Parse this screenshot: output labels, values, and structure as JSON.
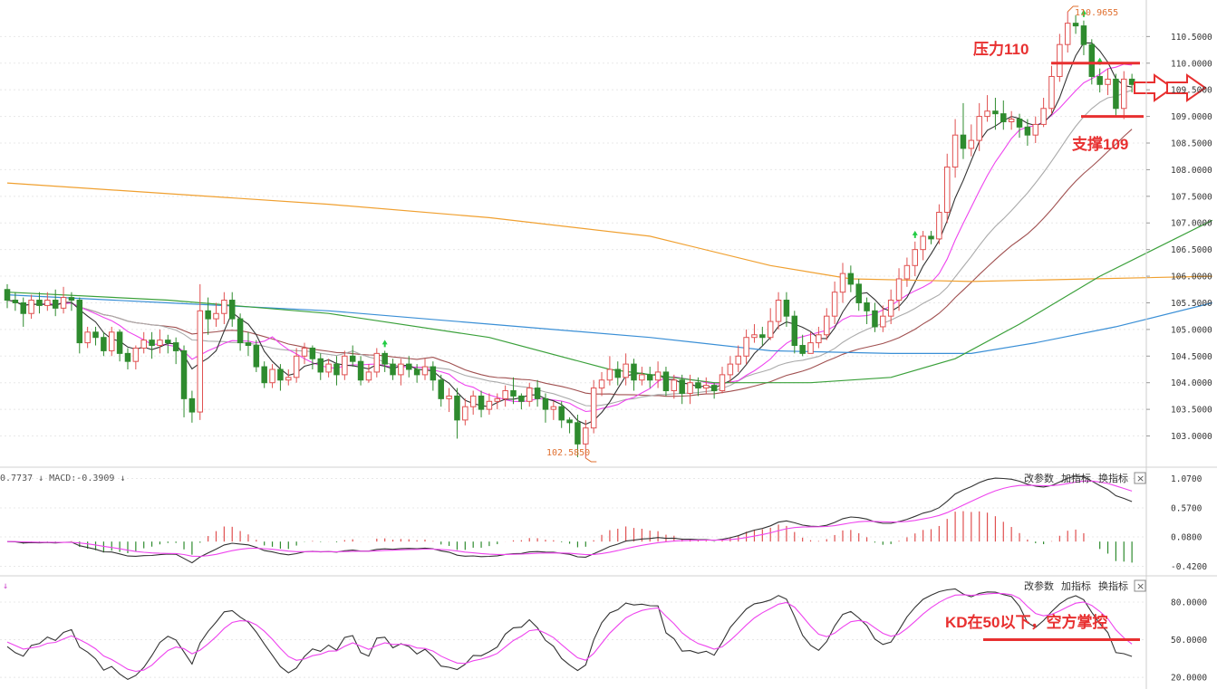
{
  "colors": {
    "up": "#e05050",
    "down": "#2e8b2e",
    "ma5": "#333333",
    "ma10": "#ee44ee",
    "ma20": "#aaaaaa",
    "ma30": "#a05050",
    "ma60": "#3aa03a",
    "ma120": "#3a8fd6",
    "ma250": "#f0a030",
    "annotation": "#e83030",
    "grid": "#e8e8e8",
    "axis_text": "#333333"
  },
  "toolbar": {
    "change_params": "改参数",
    "add_indicator": "加指标",
    "swap_indicator": "换指标",
    "close": "×"
  },
  "macd_header": {
    "text": "0.7737 ↓ MACD:-0.3909 ↓"
  },
  "kd_header": {
    "text": "↓"
  },
  "annotations": {
    "resistance": "压力110",
    "support": "支撑109",
    "kd_note": "KD在50以下，空方掌控",
    "high_label": "110.9655",
    "low_label": "102.5850"
  },
  "chart_data": [
    {
      "type": "candlestick",
      "panel": "price",
      "y_ticks": [
        "110.5000",
        "110.0000",
        "109.5000",
        "109.0000",
        "108.5000",
        "108.0000",
        "107.5000",
        "107.0000",
        "106.5000",
        "106.0000",
        "105.5000",
        "105.0000",
        "104.5000",
        "104.0000",
        "103.5000",
        "103.0000"
      ],
      "ylim": [
        102.55,
        111.05
      ],
      "high_marker": 110.9655,
      "low_marker": 102.585,
      "candles": [
        [
          105.75,
          105.55,
          105.85,
          105.4
        ],
        [
          105.55,
          105.5,
          105.7,
          105.35
        ],
        [
          105.5,
          105.3,
          105.6,
          105.05
        ],
        [
          105.3,
          105.55,
          105.65,
          105.2
        ],
        [
          105.55,
          105.45,
          105.7,
          105.3
        ],
        [
          105.45,
          105.55,
          105.7,
          105.35
        ],
        [
          105.55,
          105.4,
          105.75,
          105.25
        ],
        [
          105.4,
          105.6,
          105.8,
          105.3
        ],
        [
          105.6,
          105.55,
          105.7,
          105.35
        ],
        [
          105.55,
          104.75,
          105.6,
          104.55
        ],
        [
          104.75,
          104.95,
          105.05,
          104.65
        ],
        [
          104.95,
          104.85,
          105.05,
          104.7
        ],
        [
          104.85,
          104.6,
          104.95,
          104.5
        ],
        [
          104.6,
          104.95,
          105.05,
          104.5
        ],
        [
          104.95,
          104.55,
          105.0,
          104.4
        ],
        [
          104.55,
          104.4,
          104.65,
          104.25
        ],
        [
          104.4,
          104.65,
          104.7,
          104.25
        ],
        [
          104.65,
          104.8,
          104.95,
          104.55
        ],
        [
          104.8,
          104.7,
          104.95,
          104.45
        ],
        [
          104.7,
          104.8,
          105.0,
          104.55
        ],
        [
          104.8,
          104.75,
          104.9,
          104.55
        ],
        [
          104.75,
          104.6,
          104.85,
          104.35
        ],
        [
          104.6,
          103.7,
          104.7,
          103.35
        ],
        [
          103.7,
          103.45,
          103.85,
          103.25
        ],
        [
          103.45,
          105.35,
          105.85,
          103.3
        ],
        [
          105.35,
          105.2,
          105.6,
          104.9
        ],
        [
          105.2,
          105.3,
          105.5,
          105.05
        ],
        [
          105.3,
          105.55,
          105.7,
          105.1
        ],
        [
          105.55,
          105.2,
          105.7,
          105.05
        ],
        [
          105.2,
          104.75,
          105.3,
          104.6
        ],
        [
          104.75,
          104.7,
          104.95,
          104.5
        ],
        [
          104.7,
          104.3,
          104.8,
          104.2
        ],
        [
          104.3,
          104.0,
          104.4,
          103.9
        ],
        [
          104.0,
          104.25,
          104.35,
          103.9
        ],
        [
          104.25,
          104.05,
          104.35,
          103.85
        ],
        [
          104.05,
          104.1,
          104.25,
          103.95
        ],
        [
          104.1,
          104.5,
          104.65,
          104.0
        ],
        [
          104.5,
          104.65,
          104.75,
          104.35
        ],
        [
          104.65,
          104.45,
          104.7,
          104.25
        ],
        [
          104.45,
          104.2,
          104.55,
          104.05
        ],
        [
          104.2,
          104.35,
          104.45,
          104.1
        ],
        [
          104.35,
          104.15,
          104.5,
          103.95
        ],
        [
          104.15,
          104.5,
          104.6,
          104.05
        ],
        [
          104.5,
          104.4,
          104.7,
          104.3
        ],
        [
          104.4,
          104.05,
          104.5,
          103.95
        ],
        [
          104.05,
          104.2,
          104.35,
          104.0
        ],
        [
          104.2,
          104.55,
          104.65,
          104.1
        ],
        [
          104.55,
          104.35,
          104.6,
          104.2
        ],
        [
          104.35,
          104.15,
          104.45,
          104.05
        ],
        [
          104.15,
          104.35,
          104.45,
          103.95
        ],
        [
          104.35,
          104.25,
          104.5,
          104.1
        ],
        [
          104.25,
          104.15,
          104.35,
          104.0
        ],
        [
          104.15,
          104.3,
          104.45,
          104.05
        ],
        [
          104.3,
          104.05,
          104.4,
          103.85
        ],
        [
          104.05,
          103.7,
          104.15,
          103.55
        ],
        [
          103.7,
          103.75,
          103.9,
          103.45
        ],
        [
          103.75,
          103.3,
          103.9,
          102.95
        ],
        [
          103.3,
          103.55,
          103.7,
          103.2
        ],
        [
          103.55,
          103.75,
          103.85,
          103.4
        ],
        [
          103.75,
          103.5,
          103.85,
          103.35
        ],
        [
          103.5,
          103.65,
          103.8,
          103.4
        ],
        [
          103.65,
          103.7,
          103.8,
          103.5
        ],
        [
          103.7,
          103.85,
          103.95,
          103.55
        ],
        [
          103.85,
          103.75,
          104.1,
          103.6
        ],
        [
          103.75,
          103.65,
          103.8,
          103.5
        ],
        [
          103.65,
          103.9,
          104.0,
          103.55
        ],
        [
          103.9,
          103.7,
          104.05,
          103.55
        ],
        [
          103.7,
          103.5,
          103.8,
          103.25
        ],
        [
          103.5,
          103.55,
          103.65,
          103.3
        ],
        [
          103.55,
          103.3,
          103.65,
          103.15
        ],
        [
          103.3,
          103.25,
          103.35,
          103.05
        ],
        [
          103.25,
          102.85,
          103.4,
          102.6
        ],
        [
          102.85,
          103.15,
          103.3,
          102.585
        ],
        [
          103.15,
          103.9,
          104.05,
          103.05
        ],
        [
          103.9,
          104.05,
          104.2,
          103.75
        ],
        [
          104.05,
          104.25,
          104.5,
          103.95
        ],
        [
          104.25,
          104.1,
          104.4,
          103.95
        ],
        [
          104.1,
          104.35,
          104.55,
          103.95
        ],
        [
          104.35,
          104.05,
          104.45,
          103.85
        ],
        [
          104.05,
          104.15,
          104.3,
          103.95
        ],
        [
          104.15,
          104.05,
          104.3,
          103.9
        ],
        [
          104.05,
          104.2,
          104.4,
          103.9
        ],
        [
          104.2,
          103.85,
          104.3,
          103.75
        ],
        [
          103.85,
          104.05,
          104.15,
          103.7
        ],
        [
          104.05,
          103.8,
          104.15,
          103.6
        ],
        [
          103.8,
          104.0,
          104.15,
          103.6
        ],
        [
          104.0,
          103.9,
          104.1,
          103.75
        ],
        [
          103.9,
          103.95,
          104.1,
          103.8
        ],
        [
          103.95,
          103.85,
          104.0,
          103.7
        ],
        [
          103.85,
          104.15,
          104.3,
          103.8
        ],
        [
          104.15,
          104.35,
          104.5,
          104.0
        ],
        [
          104.35,
          104.5,
          104.7,
          104.2
        ],
        [
          104.5,
          104.85,
          105.0,
          104.35
        ],
        [
          104.85,
          104.9,
          105.1,
          104.75
        ],
        [
          104.9,
          104.85,
          105.05,
          104.7
        ],
        [
          104.85,
          105.15,
          105.4,
          104.8
        ],
        [
          105.15,
          105.55,
          105.7,
          105.0
        ],
        [
          105.55,
          105.25,
          105.7,
          105.05
        ],
        [
          105.25,
          104.7,
          105.35,
          104.55
        ],
        [
          104.7,
          104.55,
          104.9,
          104.5
        ],
        [
          104.55,
          104.75,
          104.95,
          104.55
        ],
        [
          104.75,
          104.9,
          105.05,
          104.65
        ],
        [
          104.9,
          105.25,
          105.4,
          104.8
        ],
        [
          105.25,
          105.7,
          105.9,
          105.1
        ],
        [
          105.7,
          106.05,
          106.25,
          105.5
        ],
        [
          106.05,
          105.85,
          106.2,
          105.7
        ],
        [
          105.85,
          105.5,
          105.95,
          105.35
        ],
        [
          105.5,
          105.35,
          105.6,
          105.1
        ],
        [
          105.35,
          105.05,
          105.5,
          104.95
        ],
        [
          105.05,
          105.25,
          105.45,
          104.95
        ],
        [
          105.25,
          105.55,
          105.75,
          105.1
        ],
        [
          105.55,
          105.95,
          106.15,
          105.35
        ],
        [
          105.95,
          106.2,
          106.35,
          105.8
        ],
        [
          106.2,
          106.5,
          106.65,
          106.0
        ],
        [
          106.5,
          106.75,
          106.85,
          106.3
        ],
        [
          106.75,
          106.7,
          106.85,
          106.6
        ],
        [
          106.7,
          107.2,
          107.35,
          106.6
        ],
        [
          107.2,
          108.05,
          108.3,
          107.0
        ],
        [
          108.05,
          108.65,
          108.95,
          107.85
        ],
        [
          108.65,
          108.4,
          109.25,
          108.2
        ],
        [
          108.4,
          108.55,
          108.85,
          108.25
        ],
        [
          108.55,
          109.0,
          109.25,
          108.35
        ],
        [
          109.0,
          109.1,
          109.4,
          108.9
        ],
        [
          109.1,
          109.05,
          109.35,
          108.75
        ],
        [
          109.05,
          108.9,
          109.3,
          108.75
        ],
        [
          108.9,
          108.95,
          109.1,
          108.75
        ],
        [
          108.95,
          108.8,
          109.05,
          108.6
        ],
        [
          108.8,
          108.65,
          108.95,
          108.45
        ],
        [
          108.65,
          108.85,
          109.0,
          108.5
        ],
        [
          108.85,
          109.15,
          109.35,
          108.8
        ],
        [
          109.15,
          109.75,
          109.95,
          109.05
        ],
        [
          109.75,
          110.35,
          110.55,
          109.65
        ],
        [
          110.35,
          110.75,
          110.9655,
          110.2
        ],
        [
          110.75,
          110.7,
          110.9,
          110.55
        ],
        [
          110.7,
          110.35,
          110.8,
          110.15
        ],
        [
          110.35,
          109.75,
          110.45,
          109.6
        ],
        [
          109.75,
          109.6,
          109.9,
          109.45
        ],
        [
          109.6,
          109.7,
          109.9,
          109.4
        ],
        [
          109.7,
          109.15,
          109.8,
          109.0
        ],
        [
          109.15,
          109.7,
          109.85,
          108.95
        ],
        [
          109.7,
          109.6,
          109.8,
          109.45
        ]
      ],
      "signal_marks": [
        {
          "index": 47,
          "kind": "up"
        },
        {
          "index": 113,
          "kind": "up"
        },
        {
          "index": 136,
          "kind": "up"
        },
        {
          "index": 134,
          "kind": "up"
        }
      ],
      "moving_averages": [
        {
          "key": "ma120",
          "points": [
            [
              0,
              105.65
            ],
            [
              20,
              105.5
            ],
            [
              40,
              105.35
            ],
            [
              60,
              105.1
            ],
            [
              80,
              104.85
            ],
            [
              95,
              104.6
            ],
            [
              110,
              104.55
            ],
            [
              120,
              104.55
            ],
            [
              128,
              104.75
            ],
            [
              138,
              105.05
            ],
            [
              150,
              105.5
            ]
          ]
        },
        {
          "key": "ma250",
          "points": [
            [
              0,
              107.75
            ],
            [
              20,
              107.55
            ],
            [
              40,
              107.35
            ],
            [
              60,
              107.1
            ],
            [
              80,
              106.75
            ],
            [
              95,
              106.2
            ],
            [
              105,
              105.95
            ],
            [
              120,
              105.9
            ],
            [
              135,
              105.95
            ],
            [
              150,
              106.0
            ]
          ]
        },
        {
          "key": "ma60",
          "points": [
            [
              0,
              105.7
            ],
            [
              20,
              105.55
            ],
            [
              40,
              105.3
            ],
            [
              60,
              104.85
            ],
            [
              75,
              104.25
            ],
            [
              88,
              104.0
            ],
            [
              100,
              104.0
            ],
            [
              110,
              104.1
            ],
            [
              118,
              104.45
            ],
            [
              126,
              105.1
            ],
            [
              136,
              106.0
            ],
            [
              150,
              107.05
            ]
          ]
        }
      ]
    },
    {
      "type": "macd",
      "panel": "macd",
      "y_ticks": [
        "1.0700",
        "0.5700",
        "0.0800",
        "-0.4200"
      ],
      "ylim": [
        -0.55,
        1.2
      ]
    },
    {
      "type": "kd",
      "panel": "kd",
      "y_ticks": [
        "80.0000",
        "50.0000",
        "20.0000"
      ],
      "ylim": [
        15,
        98
      ],
      "level_line": 50
    }
  ]
}
